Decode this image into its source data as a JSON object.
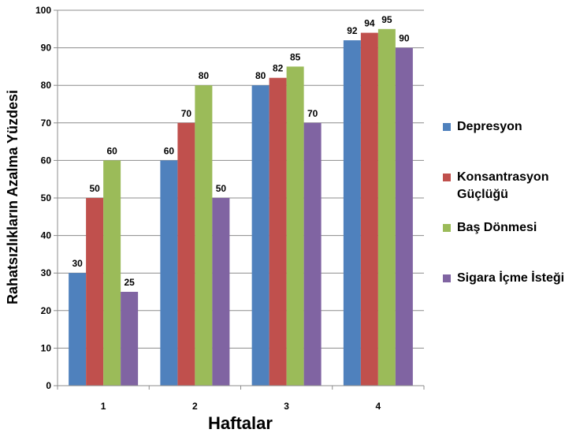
{
  "chart_data": {
    "type": "bar",
    "categories": [
      "1",
      "2",
      "3",
      "4"
    ],
    "series": [
      {
        "name": "Depresyon",
        "color": "#4F81BD",
        "values": [
          30,
          60,
          80,
          92
        ]
      },
      {
        "name": "Konsantrasyon Güçlüğü",
        "color": "#C0504D",
        "values": [
          50,
          70,
          82,
          94
        ]
      },
      {
        "name": "Baş Dönmesi",
        "color": "#9BBB59",
        "values": [
          60,
          80,
          85,
          95
        ]
      },
      {
        "name": "Sigara İçme İsteği",
        "color": "#8064A2",
        "values": [
          25,
          50,
          70,
          90
        ]
      }
    ],
    "xlabel": "Haftalar",
    "ylabel": "Rahatsızlıkların Azalma Yüzdesi",
    "ylim": [
      0,
      100
    ],
    "yticks": [
      0,
      10,
      20,
      30,
      40,
      50,
      60,
      70,
      80,
      90,
      100
    ],
    "grid": true,
    "legend_position": "right"
  }
}
